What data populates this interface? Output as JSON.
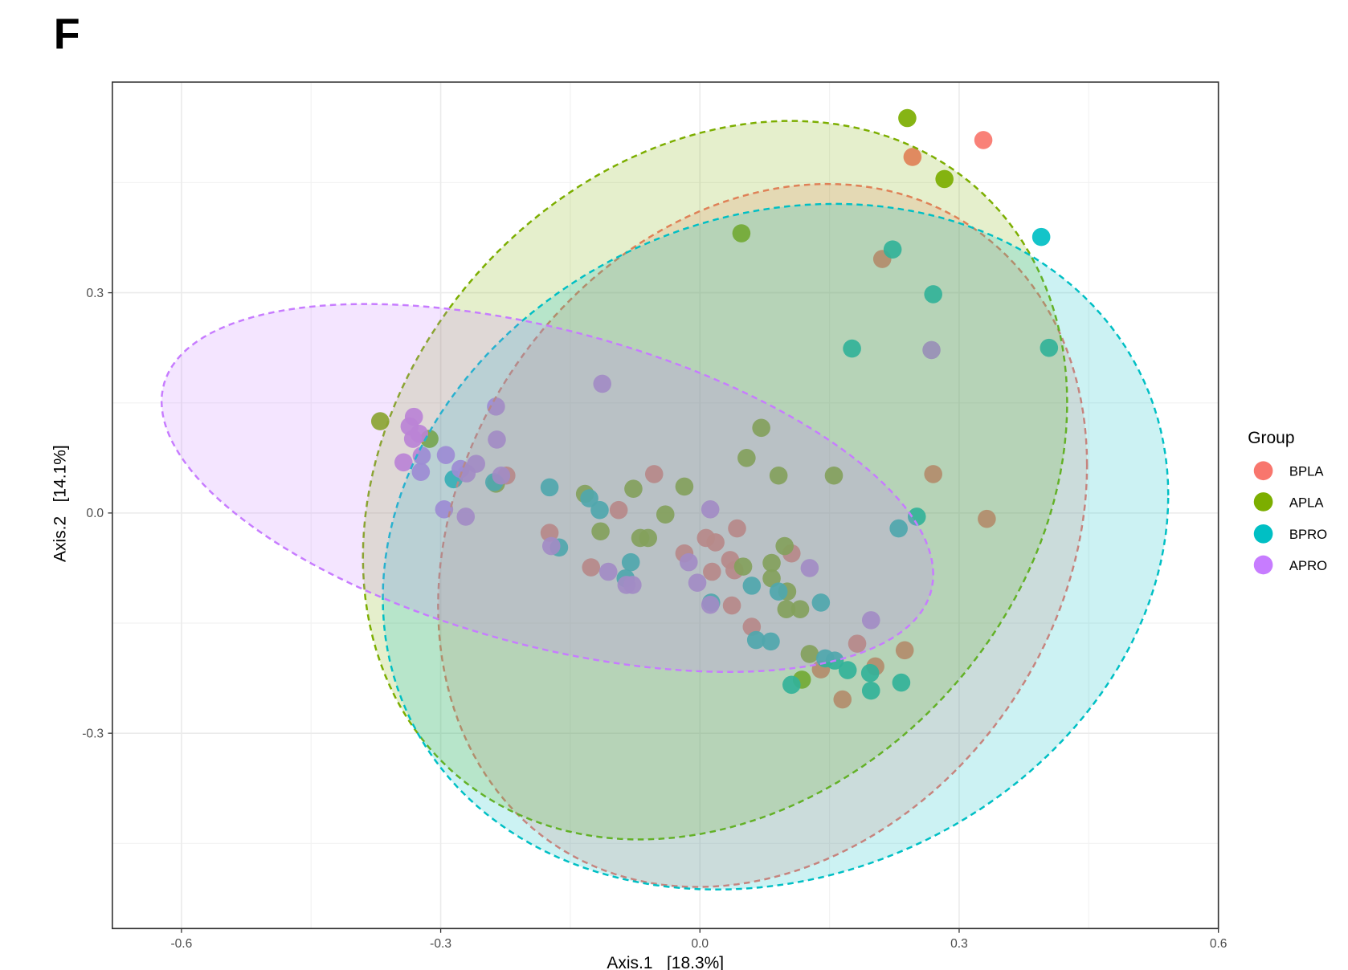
{
  "panel_label": "F",
  "chart_data": {
    "type": "scatter",
    "title": "",
    "xlabel": "Axis.1   [18.3%]",
    "ylabel": "Axis.2   [14.1%]",
    "xlim": [
      -0.68,
      0.6
    ],
    "ylim": [
      -0.566,
      0.587
    ],
    "grid": true,
    "x_ticks": [
      {
        "value": -0.6,
        "label": "-0.6"
      },
      {
        "value": -0.3,
        "label": "-0.3"
      },
      {
        "value": 0.0,
        "label": "0.0"
      },
      {
        "value": 0.3,
        "label": "0.3"
      },
      {
        "value": 0.6,
        "label": "0.6"
      }
    ],
    "y_ticks": [
      {
        "value": 0.3,
        "label": "0.3"
      },
      {
        "value": 0.0,
        "label": "0.0"
      },
      {
        "value": -0.3,
        "label": "-0.3"
      }
    ],
    "x_minor_ticks": [
      -0.45,
      -0.15,
      0.15,
      0.45
    ],
    "y_minor_ticks": [
      -0.45,
      -0.15,
      0.15,
      0.45
    ],
    "legend": {
      "title": "Group",
      "placement": "right"
    },
    "series": [
      {
        "name": "BPLA",
        "color": "#F8766D",
        "points": [
          [
            0.328,
            0.508
          ],
          [
            0.246,
            0.485
          ],
          [
            0.211,
            0.346
          ],
          [
            0.27,
            0.053
          ],
          [
            0.332,
            -0.008
          ],
          [
            -0.053,
            0.053
          ],
          [
            -0.094,
            0.004
          ],
          [
            -0.174,
            -0.027
          ],
          [
            -0.224,
            0.051
          ],
          [
            -0.126,
            -0.074
          ],
          [
            -0.018,
            -0.055
          ],
          [
            0.007,
            -0.034
          ],
          [
            0.018,
            -0.04
          ],
          [
            0.043,
            -0.021
          ],
          [
            0.035,
            -0.064
          ],
          [
            0.04,
            -0.078
          ],
          [
            0.014,
            -0.08
          ],
          [
            0.106,
            -0.055
          ],
          [
            0.037,
            -0.126
          ],
          [
            0.06,
            -0.155
          ],
          [
            0.182,
            -0.178
          ],
          [
            0.237,
            -0.187
          ],
          [
            0.203,
            -0.209
          ],
          [
            0.14,
            -0.213
          ],
          [
            0.165,
            -0.254
          ]
        ]
      },
      {
        "name": "APLA",
        "color": "#7CAE00",
        "points": [
          [
            0.24,
            0.538
          ],
          [
            0.283,
            0.455
          ],
          [
            0.048,
            0.381
          ],
          [
            -0.37,
            0.125
          ],
          [
            -0.313,
            0.101
          ],
          [
            0.071,
            0.116
          ],
          [
            0.054,
            0.075
          ],
          [
            0.091,
            0.051
          ],
          [
            0.155,
            0.051
          ],
          [
            -0.018,
            0.036
          ],
          [
            -0.077,
            0.033
          ],
          [
            -0.133,
            0.026
          ],
          [
            -0.04,
            -0.002
          ],
          [
            -0.115,
            -0.025
          ],
          [
            -0.069,
            -0.034
          ],
          [
            -0.06,
            -0.034
          ],
          [
            0.098,
            -0.045
          ],
          [
            0.083,
            -0.068
          ],
          [
            0.05,
            -0.073
          ],
          [
            0.083,
            -0.089
          ],
          [
            0.101,
            -0.107
          ],
          [
            0.1,
            -0.131
          ],
          [
            0.116,
            -0.131
          ],
          [
            0.127,
            -0.192
          ],
          [
            0.118,
            -0.227
          ],
          [
            -0.236,
            0.04
          ]
        ]
      },
      {
        "name": "BPRO",
        "color": "#00BFC4",
        "points": [
          [
            0.395,
            0.376
          ],
          [
            0.223,
            0.359
          ],
          [
            0.27,
            0.298
          ],
          [
            0.176,
            0.224
          ],
          [
            0.404,
            0.225
          ],
          [
            0.251,
            -0.005
          ],
          [
            0.23,
            -0.021
          ],
          [
            -0.174,
            0.035
          ],
          [
            -0.128,
            0.02
          ],
          [
            -0.116,
            0.004
          ],
          [
            -0.285,
            0.046
          ],
          [
            -0.238,
            0.042
          ],
          [
            -0.163,
            -0.047
          ],
          [
            -0.08,
            -0.067
          ],
          [
            -0.086,
            -0.089
          ],
          [
            0.06,
            -0.099
          ],
          [
            0.091,
            -0.107
          ],
          [
            0.013,
            -0.122
          ],
          [
            0.14,
            -0.122
          ],
          [
            0.065,
            -0.173
          ],
          [
            0.082,
            -0.175
          ],
          [
            0.145,
            -0.198
          ],
          [
            0.156,
            -0.201
          ],
          [
            0.171,
            -0.214
          ],
          [
            0.197,
            -0.218
          ],
          [
            0.198,
            -0.242
          ],
          [
            0.233,
            -0.231
          ],
          [
            0.106,
            -0.234
          ]
        ]
      },
      {
        "name": "APRO",
        "color": "#C77CFF",
        "points": [
          [
            -0.113,
            0.176
          ],
          [
            -0.236,
            0.145
          ],
          [
            -0.235,
            0.1
          ],
          [
            -0.331,
            0.131
          ],
          [
            -0.336,
            0.118
          ],
          [
            -0.325,
            0.108
          ],
          [
            -0.332,
            0.101
          ],
          [
            -0.343,
            0.069
          ],
          [
            -0.322,
            0.078
          ],
          [
            -0.323,
            0.056
          ],
          [
            -0.294,
            0.079
          ],
          [
            -0.277,
            0.06
          ],
          [
            -0.27,
            0.054
          ],
          [
            -0.259,
            0.067
          ],
          [
            -0.23,
            0.051
          ],
          [
            -0.296,
            0.005
          ],
          [
            -0.271,
            -0.005
          ],
          [
            0.012,
            0.005
          ],
          [
            -0.172,
            -0.045
          ],
          [
            -0.106,
            -0.08
          ],
          [
            -0.085,
            -0.098
          ],
          [
            -0.078,
            -0.098
          ],
          [
            -0.013,
            -0.067
          ],
          [
            -0.003,
            -0.095
          ],
          [
            0.012,
            -0.125
          ],
          [
            0.127,
            -0.075
          ],
          [
            0.198,
            -0.146
          ],
          [
            0.268,
            0.222
          ]
        ]
      }
    ],
    "ellipses": [
      {
        "group": "BPLA",
        "center": [
          0.0725,
          -0.0306
        ],
        "x_radius": 0.3755,
        "y_radius": 0.4788,
        "rho": 0.2
      },
      {
        "group": "APLA",
        "center": [
          0.0175,
          0.0447
        ],
        "x_radius": 0.4075,
        "y_radius": 0.4894,
        "rho": 0.215
      },
      {
        "group": "BPRO",
        "center": [
          0.0875,
          -0.0459
        ],
        "x_radius": 0.4545,
        "y_radius": 0.467,
        "rho": 0.15
      },
      {
        "group": "APRO",
        "center": [
          -0.1765,
          0.0341
        ],
        "x_radius": 0.4465,
        "y_radius": 0.2506,
        "rho": -0.47
      }
    ]
  }
}
